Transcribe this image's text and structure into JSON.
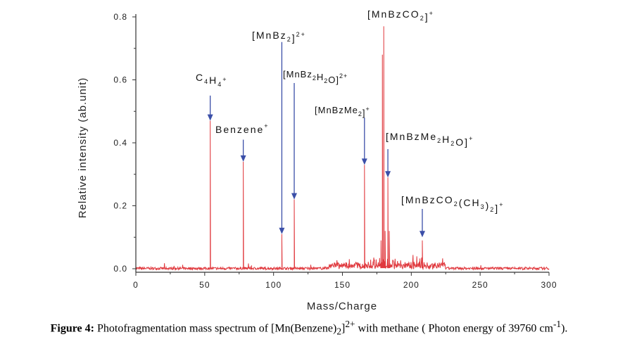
{
  "chart_data": {
    "type": "line",
    "xlabel": "Mass/Charge",
    "ylabel": "Relative intensity (ab.unit)",
    "xlim": [
      0,
      300
    ],
    "ylim": [
      -0.01,
      0.8
    ],
    "xticks": [
      "0",
      "50",
      "100",
      "150",
      "200",
      "250",
      "300"
    ],
    "yticks": [
      "0.0",
      "0.2",
      "0.4",
      "0.6",
      "0.8"
    ],
    "series_color": "#e0393e",
    "arrow_color": "#3b4fa8",
    "peaks": [
      {
        "x": 54,
        "y": 0.47
      },
      {
        "x": 78,
        "y": 0.34
      },
      {
        "x": 106,
        "y": 0.11
      },
      {
        "x": 115,
        "y": 0.22
      },
      {
        "x": 166,
        "y": 0.33
      },
      {
        "x": 178,
        "y": 0.09
      },
      {
        "x": 179,
        "y": 0.68
      },
      {
        "x": 180,
        "y": 0.77
      },
      {
        "x": 181,
        "y": 0.12
      },
      {
        "x": 183,
        "y": 0.29
      },
      {
        "x": 184,
        "y": 0.12
      },
      {
        "x": 208,
        "y": 0.09
      }
    ],
    "annotations": [
      {
        "name": "c4h4-label",
        "arrow_x": 54,
        "arrow_from_y": 0.55,
        "arrow_to_y": 0.47,
        "parts": [
          {
            "t": "C"
          },
          {
            "t": "4",
            "s": "sub"
          },
          {
            "t": "H"
          },
          {
            "t": "4",
            "s": "sub"
          },
          {
            "t": "+",
            "s": "sup"
          }
        ]
      },
      {
        "name": "benzene-label",
        "arrow_x": 78,
        "arrow_from_y": 0.41,
        "arrow_to_y": 0.34,
        "parts": [
          {
            "t": "Benzene"
          },
          {
            "t": "+",
            "s": "sup"
          }
        ]
      },
      {
        "name": "mnbz2-label",
        "arrow_x": 106,
        "arrow_from_y": 0.72,
        "arrow_to_y": 0.11,
        "parts": [
          {
            "t": "[MnBz"
          },
          {
            "t": "2",
            "s": "sub"
          },
          {
            "t": "]"
          },
          {
            "t": "2+",
            "s": "sup"
          }
        ]
      },
      {
        "name": "mnbz2h2o-label",
        "arrow_x": 115,
        "arrow_from_y": 0.59,
        "arrow_to_y": 0.22,
        "parts": [
          {
            "t": "[MnBz"
          },
          {
            "t": "2",
            "s": "sub"
          },
          {
            "t": "H"
          },
          {
            "t": "2",
            "s": "sub"
          },
          {
            "t": "O]"
          },
          {
            "t": "2+",
            "s": "sup"
          }
        ]
      },
      {
        "name": "mnbzme2-label",
        "arrow_x": 166,
        "arrow_from_y": 0.48,
        "arrow_to_y": 0.33,
        "parts": [
          {
            "t": "[MnBzMe"
          },
          {
            "t": "2",
            "s": "sub"
          },
          {
            "t": "]"
          },
          {
            "t": "+",
            "s": "sup"
          }
        ]
      },
      {
        "name": "mnbzco2-label",
        "arrow_x": 180,
        "arrow_from_y": 0.8,
        "arrow_to_y": 0.77,
        "parts": [
          {
            "t": "[MnBzCO"
          },
          {
            "t": "2",
            "s": "sub"
          },
          {
            "t": "]"
          },
          {
            "t": "+",
            "s": "sup"
          }
        ]
      },
      {
        "name": "mnbzme2h2o-label",
        "arrow_x": 183,
        "arrow_from_y": 0.38,
        "arrow_to_y": 0.29,
        "parts": [
          {
            "t": "[MnBzMe"
          },
          {
            "t": "2",
            "s": "sub"
          },
          {
            "t": "H"
          },
          {
            "t": "2",
            "s": "sub"
          },
          {
            "t": "O]"
          },
          {
            "t": "+",
            "s": "sup"
          }
        ]
      },
      {
        "name": "mnbzco2ch32-label",
        "arrow_x": 208,
        "arrow_from_y": 0.19,
        "arrow_to_y": 0.1,
        "parts": [
          {
            "t": "[MnBzCO"
          },
          {
            "t": "2",
            "s": "sub"
          },
          {
            "t": "(CH"
          },
          {
            "t": "3",
            "s": "sub"
          },
          {
            "t": ")"
          },
          {
            "t": "2",
            "s": "sub"
          },
          {
            "t": "]"
          },
          {
            "t": "+",
            "s": "sup"
          }
        ]
      }
    ]
  },
  "caption": {
    "label": "Figure 4:",
    "text_before": " Photofragmentation mass spectrum of [Mn(Benzene)",
    "sub": "2",
    "mid": "]",
    "sup": "2+",
    "text_after": " with methane ( Photon energy of 39760 cm",
    "unit_sup": "-1",
    "end": ")."
  }
}
